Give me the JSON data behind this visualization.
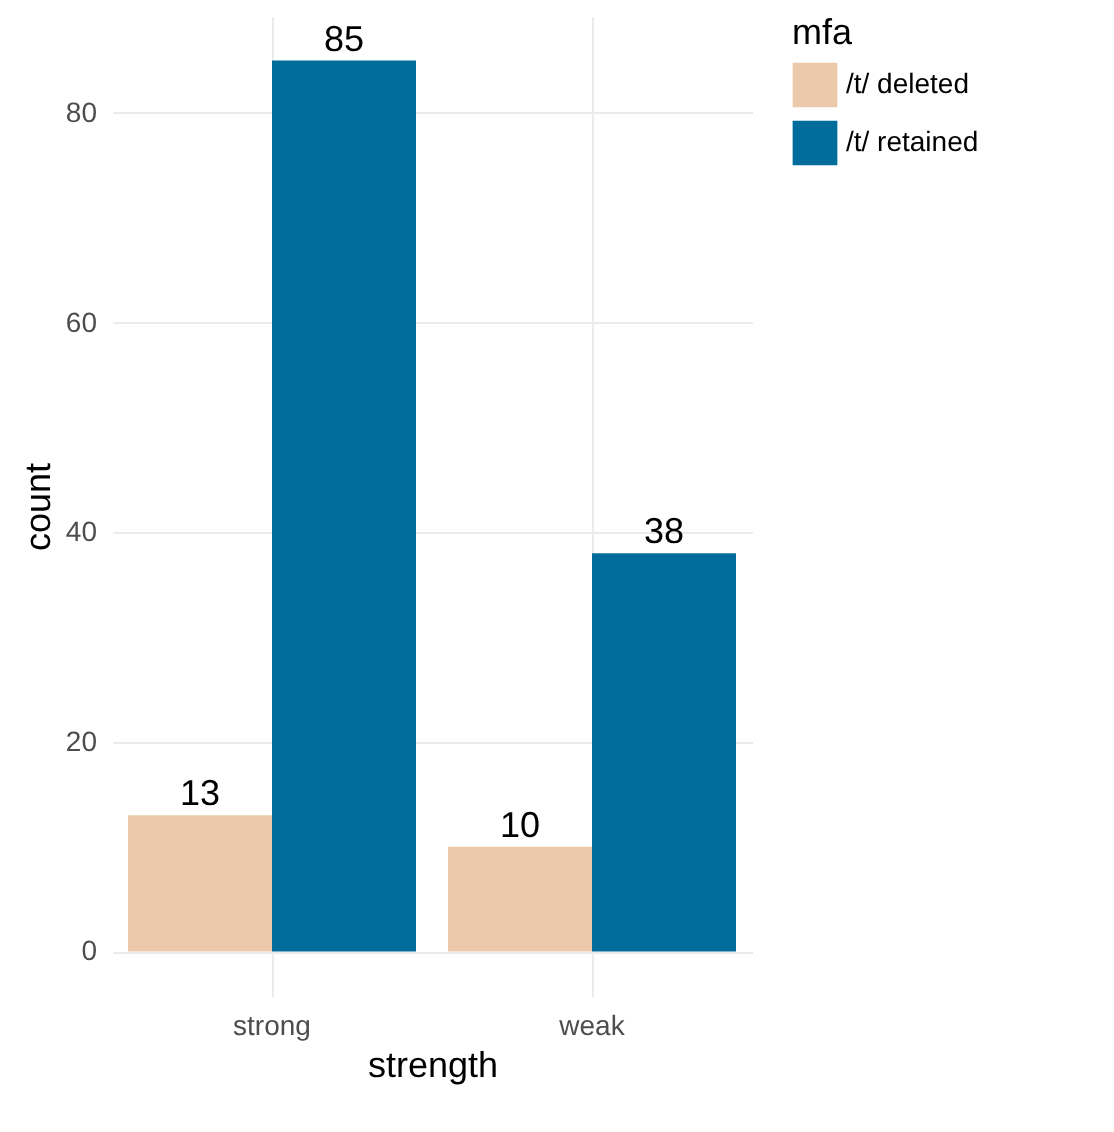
{
  "chart_data": {
    "type": "bar",
    "xlabel": "strength",
    "ylabel": "count",
    "legend_title": "mfa",
    "categories": [
      "strong",
      "weak"
    ],
    "series": [
      {
        "name": "/t/ deleted",
        "color": "#ecc9ab",
        "values": [
          13,
          10
        ]
      },
      {
        "name": "/t/ retained",
        "color": "#006c9c",
        "values": [
          85,
          38
        ]
      }
    ],
    "ylim": [
      -4.25,
      89.25
    ],
    "yticks": [
      0,
      20,
      40,
      60,
      80
    ],
    "grid": true,
    "legend": "right",
    "data_labels": true
  }
}
